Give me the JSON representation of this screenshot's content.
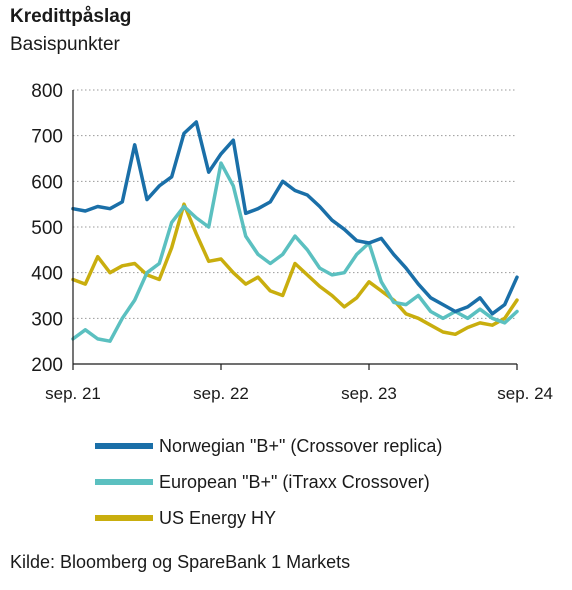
{
  "chart_data": {
    "type": "line",
    "title": "Kredittpåslag",
    "subtitle": "Basispunkter",
    "ylim": [
      200,
      800
    ],
    "yticks": [
      200,
      300,
      400,
      500,
      600,
      700,
      800
    ],
    "xlim": [
      "2021-09",
      "2024-09"
    ],
    "xticks": [
      {
        "x": "2021-09",
        "label": "sep. 21"
      },
      {
        "x": "2022-09",
        "label": "sep. 22"
      },
      {
        "x": "2023-09",
        "label": "sep. 23"
      },
      {
        "x": "2024-09",
        "label": "sep. 24"
      }
    ],
    "grid": true,
    "legend_position": "bottom",
    "series": [
      {
        "name": "Norwegian \"B+\" (Crossover replica)",
        "color": "#1a6fa8",
        "points": [
          [
            "2021-09",
            540
          ],
          [
            "2021-10",
            535
          ],
          [
            "2021-11",
            545
          ],
          [
            "2021-12",
            540
          ],
          [
            "2022-01",
            555
          ],
          [
            "2022-02",
            680
          ],
          [
            "2022-03",
            560
          ],
          [
            "2022-04",
            590
          ],
          [
            "2022-05",
            610
          ],
          [
            "2022-06",
            705
          ],
          [
            "2022-07",
            730
          ],
          [
            "2022-08",
            620
          ],
          [
            "2022-09",
            660
          ],
          [
            "2022-10",
            690
          ],
          [
            "2022-11",
            530
          ],
          [
            "2022-12",
            540
          ],
          [
            "2023-01",
            555
          ],
          [
            "2023-02",
            600
          ],
          [
            "2023-03",
            580
          ],
          [
            "2023-04",
            570
          ],
          [
            "2023-05",
            545
          ],
          [
            "2023-06",
            515
          ],
          [
            "2023-07",
            495
          ],
          [
            "2023-08",
            470
          ],
          [
            "2023-09",
            465
          ],
          [
            "2023-10",
            475
          ],
          [
            "2023-11",
            440
          ],
          [
            "2023-12",
            410
          ],
          [
            "2024-01",
            375
          ],
          [
            "2024-02",
            345
          ],
          [
            "2024-03",
            330
          ],
          [
            "2024-04",
            315
          ],
          [
            "2024-05",
            325
          ],
          [
            "2024-06",
            345
          ],
          [
            "2024-07",
            310
          ],
          [
            "2024-08",
            330
          ],
          [
            "2024-09",
            390
          ]
        ]
      },
      {
        "name": "European \"B+\" (iTraxx Crossover)",
        "color": "#5bc0c0",
        "points": [
          [
            "2021-09",
            255
          ],
          [
            "2021-10",
            275
          ],
          [
            "2021-11",
            255
          ],
          [
            "2021-12",
            250
          ],
          [
            "2022-01",
            300
          ],
          [
            "2022-02",
            340
          ],
          [
            "2022-03",
            400
          ],
          [
            "2022-04",
            420
          ],
          [
            "2022-05",
            510
          ],
          [
            "2022-06",
            545
          ],
          [
            "2022-07",
            520
          ],
          [
            "2022-08",
            500
          ],
          [
            "2022-09",
            640
          ],
          [
            "2022-10",
            590
          ],
          [
            "2022-11",
            480
          ],
          [
            "2022-12",
            440
          ],
          [
            "2023-01",
            420
          ],
          [
            "2023-02",
            440
          ],
          [
            "2023-03",
            480
          ],
          [
            "2023-04",
            450
          ],
          [
            "2023-05",
            410
          ],
          [
            "2023-06",
            395
          ],
          [
            "2023-07",
            400
          ],
          [
            "2023-08",
            440
          ],
          [
            "2023-09",
            465
          ],
          [
            "2023-10",
            380
          ],
          [
            "2023-11",
            335
          ],
          [
            "2023-12",
            330
          ],
          [
            "2024-01",
            350
          ],
          [
            "2024-02",
            315
          ],
          [
            "2024-03",
            300
          ],
          [
            "2024-04",
            315
          ],
          [
            "2024-05",
            300
          ],
          [
            "2024-06",
            320
          ],
          [
            "2024-07",
            300
          ],
          [
            "2024-08",
            290
          ],
          [
            "2024-09",
            315
          ]
        ]
      },
      {
        "name": "US Energy HY",
        "color": "#c9ae0e",
        "points": [
          [
            "2021-09",
            385
          ],
          [
            "2021-10",
            375
          ],
          [
            "2021-11",
            435
          ],
          [
            "2021-12",
            400
          ],
          [
            "2022-01",
            415
          ],
          [
            "2022-02",
            420
          ],
          [
            "2022-03",
            395
          ],
          [
            "2022-04",
            385
          ],
          [
            "2022-05",
            455
          ],
          [
            "2022-06",
            550
          ],
          [
            "2022-07",
            485
          ],
          [
            "2022-08",
            425
          ],
          [
            "2022-09",
            430
          ],
          [
            "2022-10",
            400
          ],
          [
            "2022-11",
            375
          ],
          [
            "2022-12",
            390
          ],
          [
            "2023-01",
            360
          ],
          [
            "2023-02",
            350
          ],
          [
            "2023-03",
            420
          ],
          [
            "2023-04",
            395
          ],
          [
            "2023-05",
            370
          ],
          [
            "2023-06",
            350
          ],
          [
            "2023-07",
            325
          ],
          [
            "2023-08",
            345
          ],
          [
            "2023-09",
            380
          ],
          [
            "2023-10",
            360
          ],
          [
            "2023-11",
            340
          ],
          [
            "2023-12",
            310
          ],
          [
            "2024-01",
            300
          ],
          [
            "2024-02",
            285
          ],
          [
            "2024-03",
            270
          ],
          [
            "2024-04",
            265
          ],
          [
            "2024-05",
            280
          ],
          [
            "2024-06",
            290
          ],
          [
            "2024-07",
            285
          ],
          [
            "2024-08",
            300
          ],
          [
            "2024-09",
            340
          ]
        ]
      }
    ]
  },
  "source": "Kilde: Bloomberg og SpareBank 1 Markets"
}
